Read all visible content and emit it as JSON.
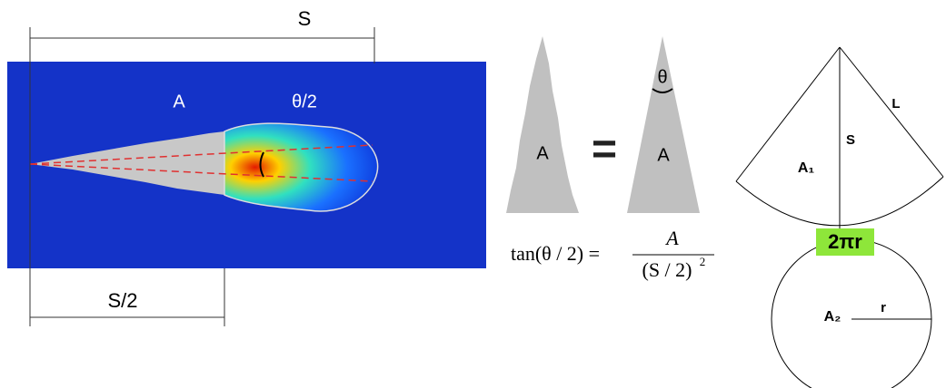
{
  "spray_image": {
    "dimension_s": "S",
    "dimension_half_s": "S/2",
    "area_label": "A",
    "half_angle_label": "θ/2"
  },
  "equivalence": {
    "jagged_area_label": "A",
    "equals": "=",
    "triangle_angle_label": "θ",
    "triangle_area_label": "A",
    "formula": {
      "left": "tan(θ / 2) =",
      "numerator": "A",
      "denominator": "(S / 2)",
      "exponent": "2"
    }
  },
  "cone": {
    "slant_label": "L",
    "height_label": "S",
    "sector_area_label": "A₁",
    "arc_length_label": "2πr",
    "circle_area_label": "A₂",
    "radius_label": "r"
  }
}
